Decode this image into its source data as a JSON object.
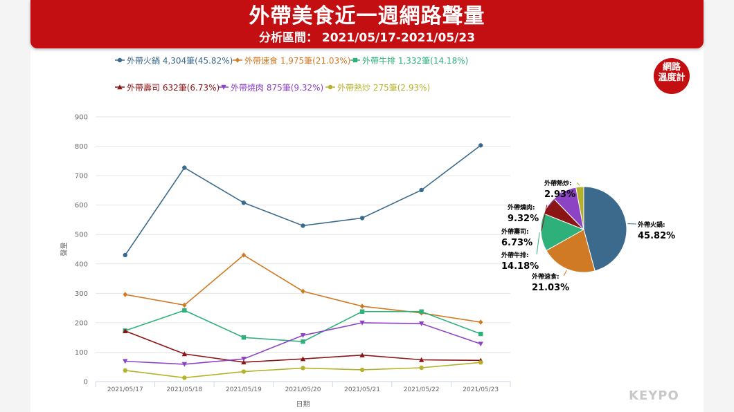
{
  "header": {
    "title": "外帶美食近一週網路聲量",
    "subtitle": "分析區間： 2021/05/17-2021/05/23"
  },
  "badge": {
    "line1": "網路",
    "line2": "溫度計"
  },
  "brand": "KEYPO",
  "chart_data": [
    {
      "type": "line",
      "xlabel": "日期",
      "ylabel": "聲量",
      "ylim": [
        0,
        900
      ],
      "yticks": [
        0,
        100,
        200,
        300,
        400,
        500,
        600,
        700,
        800,
        900
      ],
      "grid": true,
      "legend_position": "top",
      "categories": [
        "2021/05/17",
        "2021/05/18",
        "2021/05/19",
        "2021/05/20",
        "2021/05/21",
        "2021/05/22",
        "2021/05/23"
      ],
      "series": [
        {
          "name": "外帶火鍋",
          "legend": "外帶火鍋 4,304筆(45.82%)",
          "color": "#3c6a8c",
          "marker": "circle",
          "values": [
            430,
            727,
            608,
            530,
            556,
            651,
            803
          ]
        },
        {
          "name": "外帶速食",
          "legend": "外帶速食 1,975筆(21.03%)",
          "color": "#d17a26",
          "marker": "diamond",
          "values": [
            296,
            260,
            430,
            307,
            256,
            233,
            202
          ]
        },
        {
          "name": "外帶牛排",
          "legend": "外帶牛排 1,332筆(14.18%)",
          "color": "#2eb07a",
          "marker": "square",
          "values": [
            173,
            242,
            150,
            136,
            238,
            238,
            162
          ]
        },
        {
          "name": "外帶壽司",
          "legend": "外帶壽司 632筆(6.73%)",
          "color": "#8b1414",
          "marker": "triangle",
          "values": [
            172,
            94,
            66,
            77,
            90,
            74,
            72
          ]
        },
        {
          "name": "外帶燒肉",
          "legend": "外帶燒肉 875筆(9.32%)",
          "color": "#8c44c4",
          "marker": "triangle-down",
          "values": [
            69,
            59,
            77,
            157,
            200,
            197,
            128
          ]
        },
        {
          "name": "外帶熱炒",
          "legend": "外帶熱炒 275筆(2.93%)",
          "color": "#b4b22a",
          "marker": "circle",
          "values": [
            38,
            13,
            34,
            46,
            40,
            47,
            65
          ]
        }
      ]
    },
    {
      "type": "pie",
      "slices": [
        {
          "label": "外帶火鍋:",
          "percent": "45.82%",
          "value": 45.82,
          "color": "#3c6a8c"
        },
        {
          "label": "外帶速食:",
          "percent": "21.03%",
          "value": 21.03,
          "color": "#d17a26"
        },
        {
          "label": "外帶牛排:",
          "percent": "14.18%",
          "value": 14.18,
          "color": "#2eb07a"
        },
        {
          "label": "外帶壽司:",
          "percent": "6.73%",
          "value": 6.73,
          "color": "#8b1414"
        },
        {
          "label": "外帶燒肉:",
          "percent": "9.32%",
          "value": 9.32,
          "color": "#8c44c4"
        },
        {
          "label": "外帶熱炒:",
          "percent": "2.93%",
          "value": 2.93,
          "color": "#b4b22a"
        }
      ]
    }
  ]
}
